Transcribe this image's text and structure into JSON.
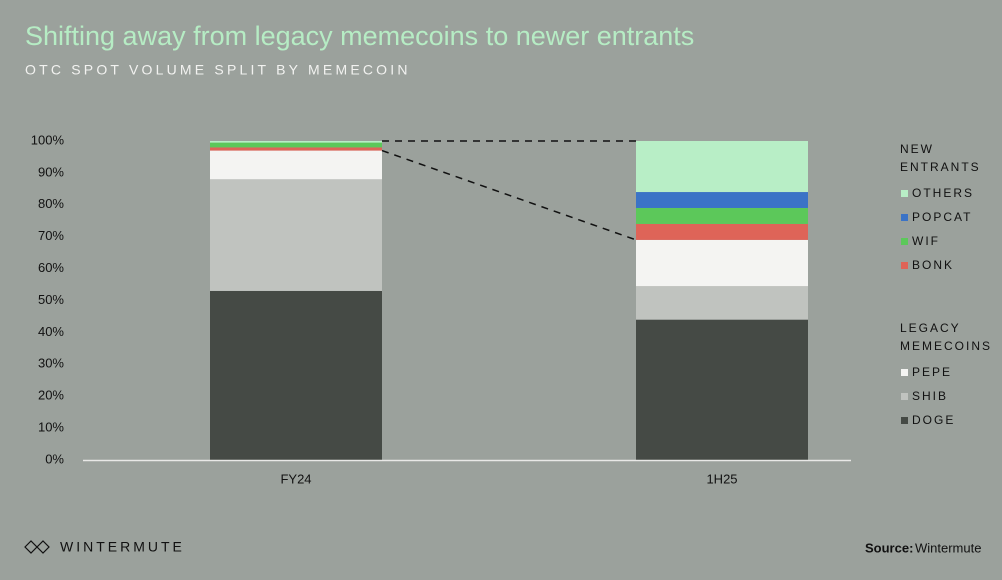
{
  "chart_data": {
    "type": "stacked-bar",
    "title": "Shifting away from legacy memecoins to newer entrants",
    "subtitle": "OTC SPOT VOLUME SPLIT BY MEMECOIN",
    "categories": [
      "FY24",
      "1H25"
    ],
    "series": [
      {
        "name": "OTHERS",
        "color": "#b8eec6",
        "values": [
          0.5,
          16
        ]
      },
      {
        "name": "POPCAT",
        "color": "#3b73c6",
        "values": [
          0,
          5
        ]
      },
      {
        "name": "WIF",
        "color": "#5cc85a",
        "values": [
          1.5,
          5
        ]
      },
      {
        "name": "BONK",
        "color": "#de6458",
        "values": [
          1,
          5
        ]
      },
      {
        "name": "PEPE",
        "color": "#f4f4f2",
        "values": [
          9,
          14.5
        ]
      },
      {
        "name": "SHIB",
        "color": "#c0c3bf",
        "values": [
          35,
          10.5
        ]
      },
      {
        "name": "DOGE",
        "color": "#454a45",
        "values": [
          53,
          44
        ]
      }
    ],
    "legend_titles": [
      "NEW ENTRANTS",
      "LEGACY MEMECOINS"
    ],
    "ylim": [
      0,
      100
    ],
    "yticks": [
      {
        "value": 0,
        "label": "0%"
      },
      {
        "value": 10,
        "label": "10%"
      },
      {
        "value": 20,
        "label": "20%"
      },
      {
        "value": 30,
        "label": "30%"
      },
      {
        "value": 40,
        "label": "40%"
      },
      {
        "value": 50,
        "label": "50%"
      },
      {
        "value": 60,
        "label": "60%"
      },
      {
        "value": 70,
        "label": "70%"
      },
      {
        "value": 80,
        "label": "80%"
      },
      {
        "value": 90,
        "label": "90%"
      },
      {
        "value": 100,
        "label": "100%"
      }
    ],
    "grid": false
  },
  "footer": {
    "brand": "WINTERMUTE",
    "source_label": "Source:",
    "source": "Wintermute"
  }
}
